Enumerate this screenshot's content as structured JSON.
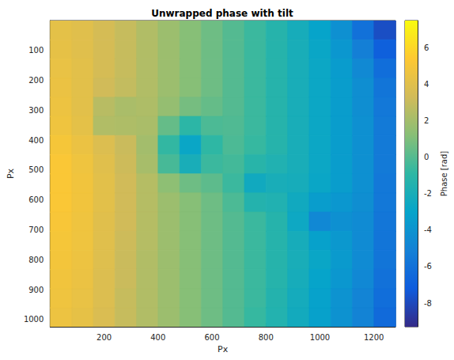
{
  "chart_data": {
    "type": "heatmap",
    "title": "Unwrapped phase with tilt",
    "x_label": "Px",
    "y_label": "Px",
    "x_edges": [
      0,
      80,
      160,
      240,
      320,
      400,
      480,
      560,
      640,
      720,
      800,
      880,
      960,
      1040,
      1120,
      1200,
      1280
    ],
    "y_edges": [
      0,
      64,
      128,
      192,
      256,
      320,
      384,
      448,
      512,
      576,
      640,
      704,
      768,
      832,
      896,
      960,
      1024
    ],
    "values": [
      [
        4.2,
        4.0,
        3.5,
        3.0,
        2.4,
        1.8,
        1.2,
        0.6,
        0.0,
        -0.6,
        -1.3,
        -2.1,
        -3.0,
        -4.2,
        -6.0,
        -7.8
      ],
      [
        4.3,
        4.0,
        3.5,
        3.0,
        2.4,
        1.8,
        1.2,
        0.6,
        0.0,
        -0.6,
        -1.3,
        -2.0,
        -2.8,
        -3.8,
        -5.2,
        -7.0
      ],
      [
        4.4,
        4.1,
        3.5,
        3.0,
        2.4,
        1.8,
        1.2,
        0.6,
        0.0,
        -0.6,
        -1.3,
        -2.0,
        -2.7,
        -3.5,
        -4.6,
        -6.2
      ],
      [
        4.5,
        4.1,
        3.3,
        2.9,
        2.4,
        1.8,
        1.2,
        0.6,
        0.0,
        -0.6,
        -1.3,
        -2.0,
        -2.7,
        -3.4,
        -4.3,
        -5.8
      ],
      [
        4.6,
        4.1,
        2.6,
        2.2,
        2.3,
        1.6,
        0.8,
        0.4,
        0.0,
        -0.6,
        -1.3,
        -2.0,
        -2.7,
        -3.4,
        -4.3,
        -5.6
      ],
      [
        4.7,
        4.2,
        2.4,
        2.3,
        2.2,
        0.4,
        -1.0,
        -0.2,
        -0.1,
        -0.6,
        -1.3,
        -2.0,
        -2.7,
        -3.4,
        -4.2,
        -5.5
      ],
      [
        5.0,
        4.5,
        3.8,
        3.1,
        2.0,
        -0.8,
        -2.8,
        -0.9,
        -0.2,
        -0.7,
        -1.3,
        -2.0,
        -2.7,
        -3.4,
        -4.2,
        -5.5
      ],
      [
        5.2,
        4.7,
        4.0,
        3.2,
        2.1,
        -0.3,
        -2.0,
        -0.6,
        -0.4,
        -1.2,
        -1.6,
        -2.0,
        -2.7,
        -3.4,
        -4.2,
        -5.5
      ],
      [
        5.2,
        4.8,
        4.1,
        3.3,
        2.5,
        1.4,
        0.6,
        0.2,
        -0.6,
        -2.4,
        -2.0,
        -2.1,
        -2.8,
        -3.4,
        -4.2,
        -5.6
      ],
      [
        5.2,
        4.8,
        4.1,
        3.3,
        2.5,
        1.8,
        1.2,
        0.6,
        -0.2,
        -1.4,
        -1.6,
        -2.4,
        -3.4,
        -3.8,
        -4.3,
        -5.6
      ],
      [
        5.1,
        4.7,
        4.0,
        3.3,
        2.5,
        1.8,
        1.2,
        0.6,
        0.0,
        -0.6,
        -1.3,
        -2.6,
        -4.7,
        -4.2,
        -4.5,
        -5.7
      ],
      [
        5.0,
        4.7,
        4.0,
        3.2,
        2.5,
        1.8,
        1.2,
        0.6,
        0.0,
        -0.6,
        -1.3,
        -2.1,
        -3.2,
        -3.7,
        -4.5,
        -5.8
      ],
      [
        4.9,
        4.6,
        3.9,
        3.1,
        2.4,
        1.8,
        1.2,
        0.6,
        0.0,
        -0.6,
        -1.3,
        -2.0,
        -2.8,
        -3.6,
        -4.5,
        -5.8
      ],
      [
        4.8,
        4.5,
        3.8,
        3.1,
        2.4,
        1.8,
        1.2,
        0.6,
        0.0,
        -0.6,
        -1.3,
        -2.1,
        -3.0,
        -3.8,
        -4.7,
        -6.0
      ],
      [
        4.7,
        4.4,
        3.8,
        3.0,
        2.4,
        1.8,
        1.2,
        0.6,
        0.0,
        -0.6,
        -1.4,
        -2.2,
        -3.1,
        -4.0,
        -4.9,
        -6.2
      ],
      [
        4.6,
        4.3,
        3.7,
        3.0,
        2.4,
        1.8,
        1.2,
        0.6,
        0.0,
        -0.7,
        -1.5,
        -2.3,
        -3.2,
        -4.1,
        -5.0,
        -6.4
      ]
    ],
    "xlim": [
      0,
      1280
    ],
    "ylim": [
      0,
      1024
    ],
    "xticks": [
      200,
      400,
      600,
      800,
      1000,
      1200
    ],
    "yticks": [
      100,
      200,
      300,
      400,
      500,
      600,
      700,
      800,
      900,
      1000
    ],
    "colorbar_label": "Phase [rad]",
    "colorbar_range": [
      -9.3,
      7.5
    ],
    "colorbar_ticks": [
      -8,
      -6,
      -4,
      -2,
      0,
      2,
      4,
      6
    ]
  }
}
